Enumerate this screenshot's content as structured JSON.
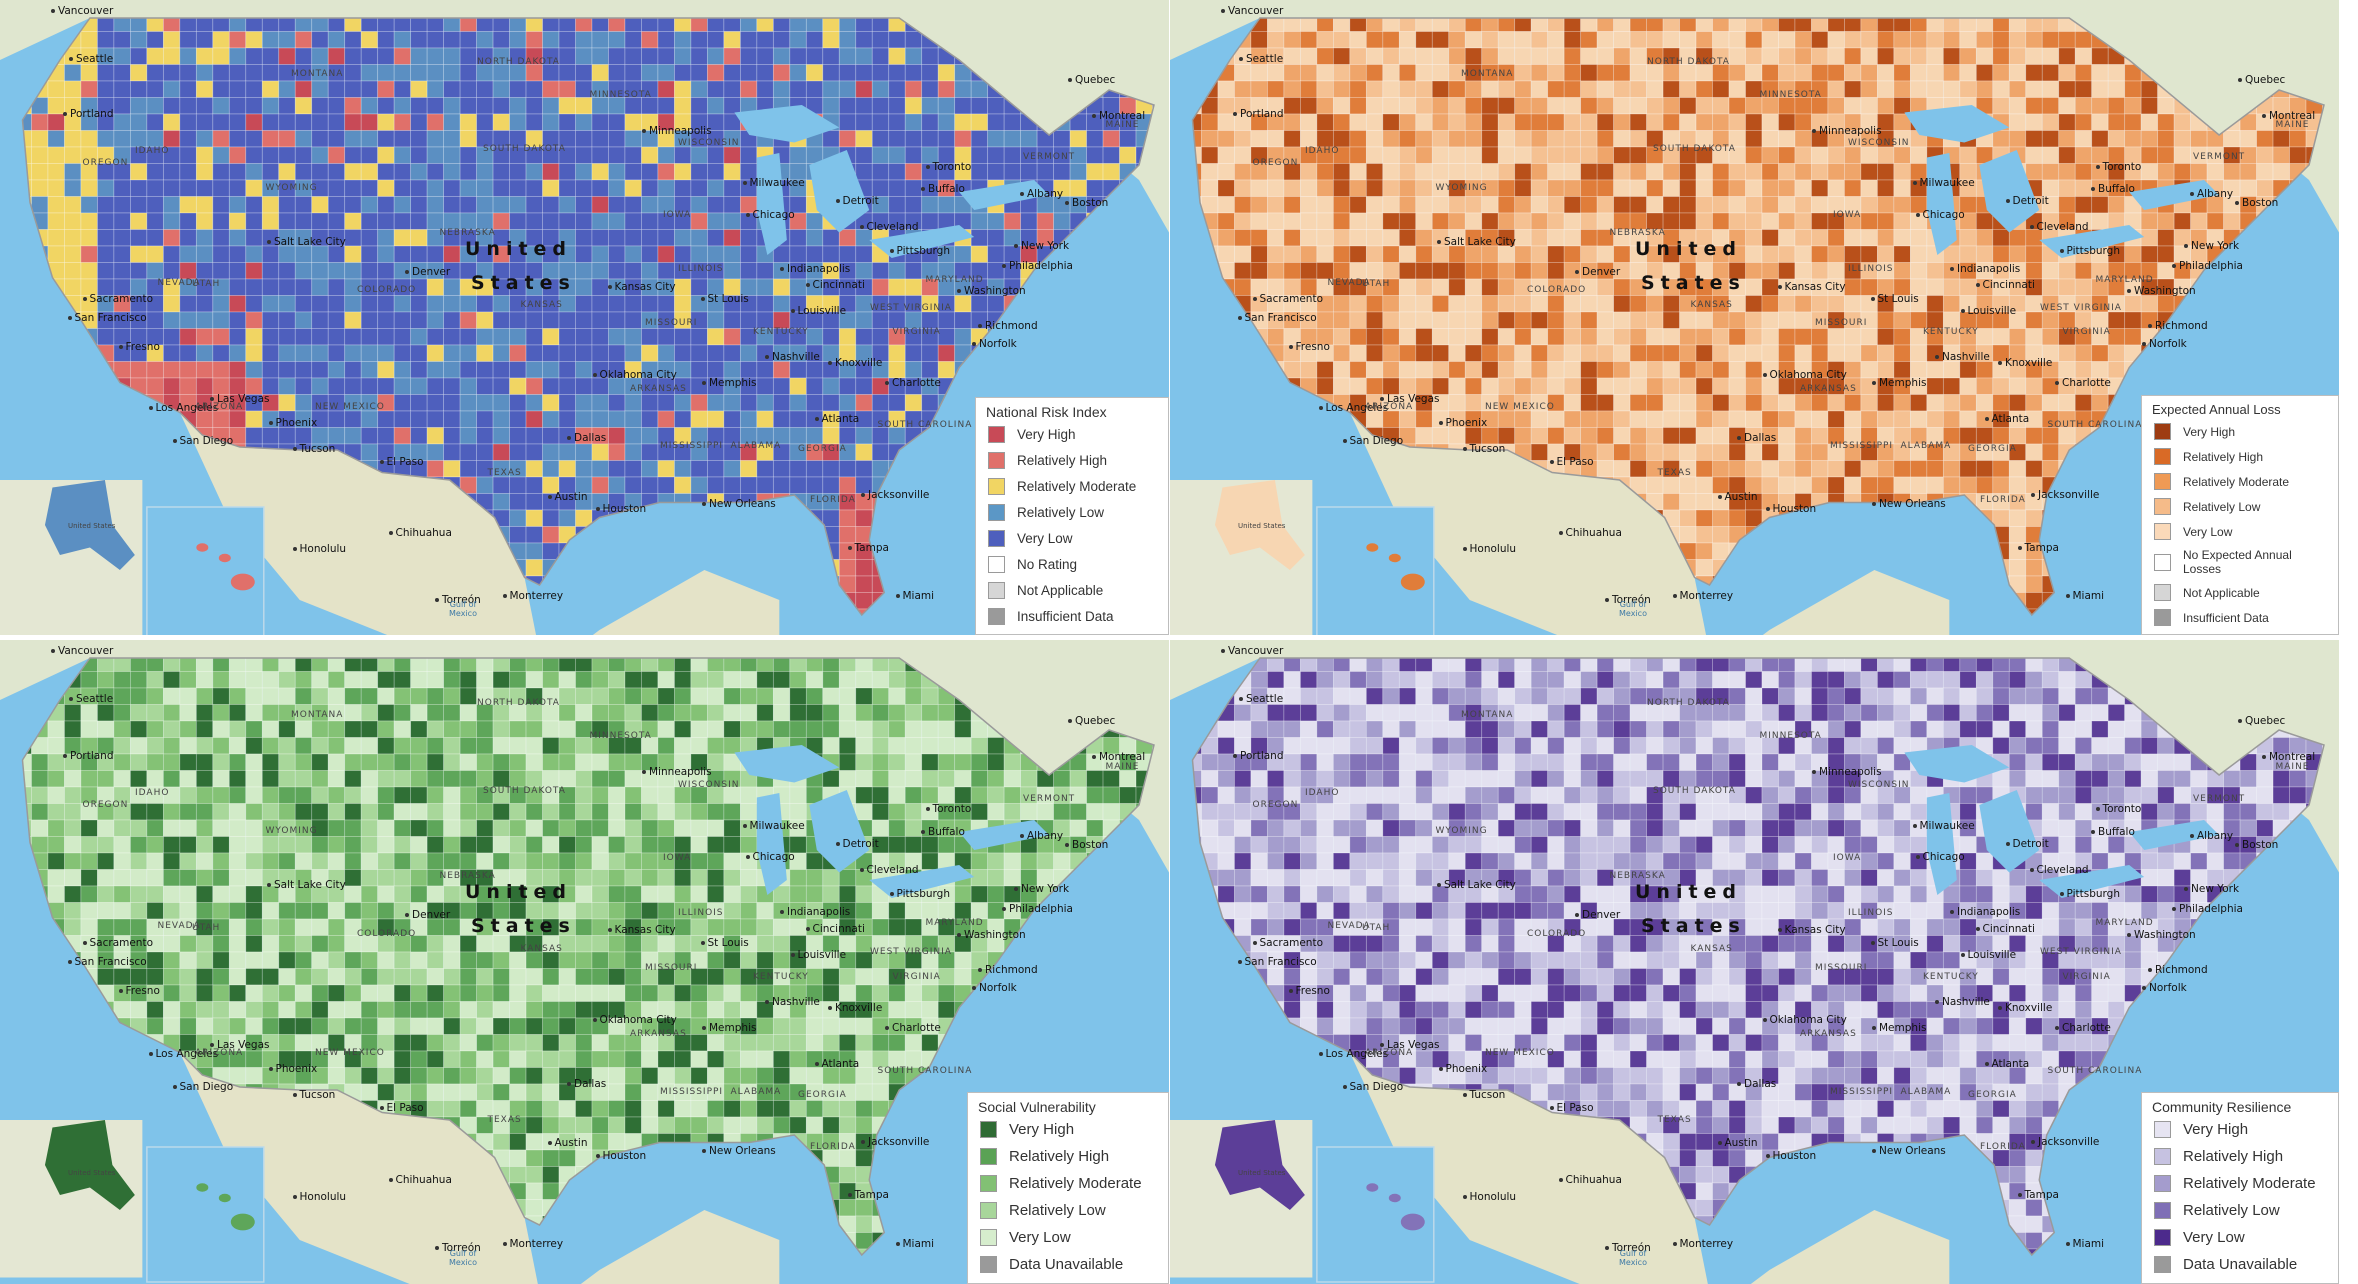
{
  "panels": [
    {
      "legend_title": "National Risk Index",
      "palette": [
        "#4e5fbd",
        "#5b8fc2",
        "#f1d563",
        "#e0706a",
        "#c84a57"
      ],
      "legend": [
        {
          "label": "Very High",
          "color": "#c84a57"
        },
        {
          "label": "Relatively High",
          "color": "#e0706a"
        },
        {
          "label": "Relatively Moderate",
          "color": "#f1d563"
        },
        {
          "label": "Relatively Low",
          "color": "#5b97c6"
        },
        {
          "label": "Very Low",
          "color": "#4e5fbd"
        },
        {
          "label": "No Rating",
          "color": "#ffffff"
        },
        {
          "label": "Not Applicable",
          "color": "#d6d6d6"
        },
        {
          "label": "Insufficient Data",
          "color": "#9a9a9a"
        }
      ]
    },
    {
      "legend_title": "Expected Annual Loss",
      "palette": [
        "#f7d6b2",
        "#f5c192",
        "#efa56a",
        "#e07d3a",
        "#b9501a"
      ],
      "legend": [
        {
          "label": "Very High",
          "color": "#9e3c12"
        },
        {
          "label": "Relatively High",
          "color": "#d96a26"
        },
        {
          "label": "Relatively Moderate",
          "color": "#ef9a55"
        },
        {
          "label": "Relatively Low",
          "color": "#f5bb89"
        },
        {
          "label": "Very Low",
          "color": "#fad9b9"
        },
        {
          "label": "No Expected Annual Losses",
          "color": "#ffffff"
        },
        {
          "label": "Not Applicable",
          "color": "#d6d6d6"
        },
        {
          "label": "Insufficient Data",
          "color": "#9a9a9a"
        }
      ]
    },
    {
      "legend_title": "Social Vulnerability",
      "palette": [
        "#d2ebc8",
        "#a8d79a",
        "#84c275",
        "#5ea65a",
        "#2f6f35"
      ],
      "legend": [
        {
          "label": "Very High",
          "color": "#2f6b34"
        },
        {
          "label": "Relatively High",
          "color": "#5aa255"
        },
        {
          "label": "Relatively Moderate",
          "color": "#82c074"
        },
        {
          "label": "Relatively Low",
          "color": "#a8d69b"
        },
        {
          "label": "Very Low",
          "color": "#d6edcd"
        },
        {
          "label": "Data Unavailable",
          "color": "#9a9a9a"
        }
      ]
    },
    {
      "legend_title": "Community Resilience",
      "palette": [
        "#e3e1f0",
        "#c7c3e2",
        "#a49dcd",
        "#8373b8",
        "#5c3e98"
      ],
      "legend": [
        {
          "label": "Very High",
          "color": "#e6e4f2"
        },
        {
          "label": "Relatively High",
          "color": "#c6c2e1"
        },
        {
          "label": "Relatively Moderate",
          "color": "#a49ccd"
        },
        {
          "label": "Relatively Low",
          "color": "#7f6fb6"
        },
        {
          "label": "Very Low",
          "color": "#4c2a8c"
        },
        {
          "label": "Data Unavailable",
          "color": "#9a9a9a"
        }
      ]
    }
  ],
  "labels": {
    "country": "United States",
    "alaska": "United States",
    "cities": [
      "Vancouver",
      "Seattle",
      "Portland",
      "Sacramento",
      "San Francisco",
      "Fresno",
      "Los Angeles",
      "San Diego",
      "Las Vegas",
      "Phoenix",
      "Tucson",
      "El Paso",
      "Salt Lake City",
      "Denver",
      "Minneapolis",
      "Milwaukee",
      "Chicago",
      "Detroit",
      "Toronto",
      "Buffalo",
      "Albany",
      "Boston",
      "Quebec",
      "Montreal",
      "New York",
      "Philadelphia",
      "Pittsburgh",
      "Cleveland",
      "Washington",
      "Richmond",
      "Norfolk",
      "Indianapolis",
      "Cincinnati",
      "Louisville",
      "St Louis",
      "Kansas City",
      "Oklahoma City",
      "Nashville",
      "Knoxville",
      "Charlotte",
      "Memphis",
      "Atlanta",
      "Dallas",
      "Austin",
      "Houston",
      "New Orleans",
      "Jacksonville",
      "Tampa",
      "Miami",
      "Honolulu",
      "Monterrey",
      "Torreón",
      "Chihuahua"
    ],
    "states": [
      "MONTANA",
      "NORTH DAKOTA",
      "SOUTH DAKOTA",
      "MINNESOTA",
      "WISCONSIN",
      "IDAHO",
      "OREGON",
      "WYOMING",
      "NEVADA",
      "UTAH",
      "COLORADO",
      "NEBRASKA",
      "KANSAS",
      "IOWA",
      "ILLINOIS",
      "MISSOURI",
      "ARIZONA",
      "NEW MEXICO",
      "TEXAS",
      "ARKANSAS",
      "MISSISSIPPI",
      "ALABAMA",
      "GEORGIA",
      "FLORIDA",
      "KENTUCKY",
      "WEST VIRGINIA",
      "VIRGINIA",
      "MARYLAND",
      "VERMONT",
      "MAINE",
      "SOUTH CAROLINA"
    ],
    "gulf": "Gulf of Mexico"
  }
}
